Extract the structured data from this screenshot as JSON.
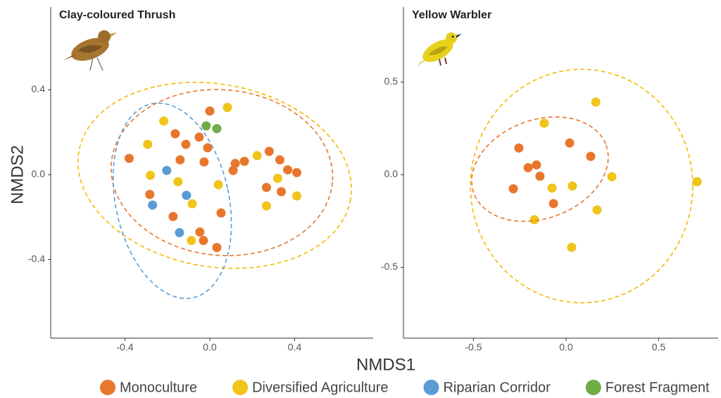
{
  "xlabel": "NMDS1",
  "ylabel": "NMDS2",
  "chart_data": [
    {
      "type": "scatter",
      "title": "Clay-coloured Thrush",
      "xlim": [
        -0.75,
        0.77
      ],
      "ylim": [
        -0.77,
        0.79
      ],
      "xticks": [
        -0.4,
        {
          "value": 0,
          "label": "0.0"
        },
        0.4
      ],
      "yticks": [
        -0.4,
        {
          "value": 0,
          "label": "0.0"
        },
        0.4
      ],
      "series": [
        {
          "name": "Monoculture",
          "color": "#e8762c",
          "x": [
            -0.38,
            0.0,
            -0.163,
            -0.113,
            -0.05,
            -0.01,
            -0.14,
            -0.027,
            0.12,
            0.163,
            0.11,
            0.28,
            0.33,
            0.367,
            0.41,
            0.267,
            0.337,
            -0.283,
            0.053,
            -0.173,
            -0.047,
            -0.03,
            0.033
          ],
          "values": [
            0.077,
            0.3,
            0.193,
            0.143,
            0.177,
            0.127,
            0.07,
            0.06,
            0.053,
            0.063,
            0.02,
            0.11,
            0.07,
            0.023,
            0.01,
            -0.06,
            -0.08,
            -0.093,
            -0.18,
            -0.197,
            -0.27,
            -0.31,
            -0.343
          ]
        },
        {
          "name": "Diversified Agriculture",
          "color": "#f0c419",
          "x": [
            0.083,
            -0.217,
            -0.293,
            -0.28,
            -0.15,
            0.04,
            0.223,
            0.32,
            0.41,
            0.267,
            -0.083,
            -0.087
          ],
          "values": [
            0.317,
            0.253,
            0.143,
            -0.003,
            -0.033,
            -0.047,
            0.09,
            -0.017,
            -0.1,
            -0.147,
            -0.137,
            -0.31
          ]
        },
        {
          "name": "Riparian Corridor",
          "color": "#5b9bd5",
          "x": [
            -0.203,
            -0.11,
            -0.27,
            -0.143
          ],
          "values": [
            0.02,
            -0.097,
            -0.143,
            -0.273
          ]
        },
        {
          "name": "Forest Fragment",
          "color": "#70ad47",
          "x": [
            -0.017,
            0.033
          ],
          "values": [
            0.23,
            0.217
          ]
        }
      ],
      "ellipses": [
        {
          "color": "#f5b800",
          "cx": 0.023,
          "cy": -0.003,
          "rx": 0.65,
          "ry": 0.43,
          "angle": 10
        },
        {
          "color": "#e8762c",
          "cx": 0.057,
          "cy": 0.01,
          "rx": 0.523,
          "ry": 0.39,
          "angle": 5
        },
        {
          "color": "#5b9bd5",
          "cx": -0.177,
          "cy": -0.123,
          "rx": 0.267,
          "ry": 0.467,
          "angle": -12
        }
      ]
    },
    {
      "type": "scatter",
      "title": "Yellow Warbler",
      "xlim": [
        -0.878,
        0.821
      ],
      "ylim": [
        -0.882,
        0.905
      ],
      "xticks": [
        -0.5,
        {
          "value": 0,
          "label": "0.0"
        },
        0.5
      ],
      "yticks": [
        -0.5,
        {
          "value": 0,
          "label": "0.0"
        },
        0.5
      ],
      "series": [
        {
          "name": "Monoculture",
          "color": "#e8762c",
          "x": [
            -0.255,
            -0.205,
            -0.16,
            -0.141,
            -0.285,
            0.019,
            0.133,
            -0.068
          ],
          "values": [
            0.144,
            0.038,
            0.053,
            -0.008,
            -0.076,
            0.171,
            0.099,
            -0.156
          ]
        },
        {
          "name": "Diversified Agriculture",
          "color": "#f0c419",
          "x": [
            0.16,
            -0.118,
            -0.076,
            0.034,
            0.247,
            0.707,
            0.167,
            -0.171,
            0.03
          ],
          "values": [
            0.392,
            0.278,
            -0.072,
            -0.061,
            -0.011,
            -0.038,
            -0.19,
            -0.243,
            -0.392
          ]
        }
      ],
      "ellipses": [
        {
          "color": "#f5b800",
          "cx": 0.084,
          "cy": -0.061,
          "rx": 0.6,
          "ry": 0.63,
          "angle": 0
        },
        {
          "color": "#e8762c",
          "cx": -0.141,
          "cy": 0.03,
          "rx": 0.38,
          "ry": 0.266,
          "angle": -20
        }
      ]
    }
  ]
}
